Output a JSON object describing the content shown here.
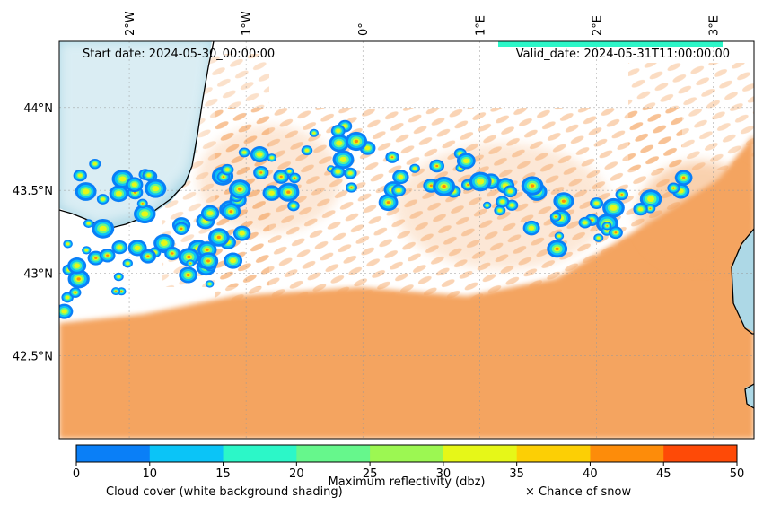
{
  "map": {
    "start_date": "Start date: 2024-05-30_00:00:00",
    "valid_date": "Valid_date: 2024-05-31T11:00:00.00",
    "lon_labels": [
      "2°W",
      "1°W",
      "0°",
      "1°E",
      "2°E",
      "3°E"
    ],
    "lon_values": [
      -2,
      -1,
      0,
      1,
      2,
      3
    ],
    "lat_labels": [
      "44°N",
      "43.5°N",
      "43°N",
      "42.5°N"
    ],
    "lat_values": [
      44,
      43.5,
      43,
      42.5
    ],
    "extent": {
      "lon_min": -2.6,
      "lon_max": 3.35,
      "lat_min": 42.0,
      "lat_max": 44.4
    }
  },
  "colorbar": {
    "title": "Maximum reflectivity (dbz)",
    "ticks": [
      "0",
      "10",
      "15",
      "20",
      "25",
      "30",
      "35",
      "40",
      "45",
      "50"
    ],
    "colors": [
      "#0a7ff7",
      "#0bc4f7",
      "#2cf7c8",
      "#66f78c",
      "#9cf752",
      "#e6f718",
      "#fccf05",
      "#fd8c0a",
      "#fe4a07"
    ]
  },
  "legend": {
    "cloud_cover": "Cloud cover (white background shading)",
    "snow": "× Chance of snow"
  },
  "colors": {
    "sea": "#add8e6",
    "land_haze": "#f4a460",
    "cloud": "#ffffff"
  }
}
